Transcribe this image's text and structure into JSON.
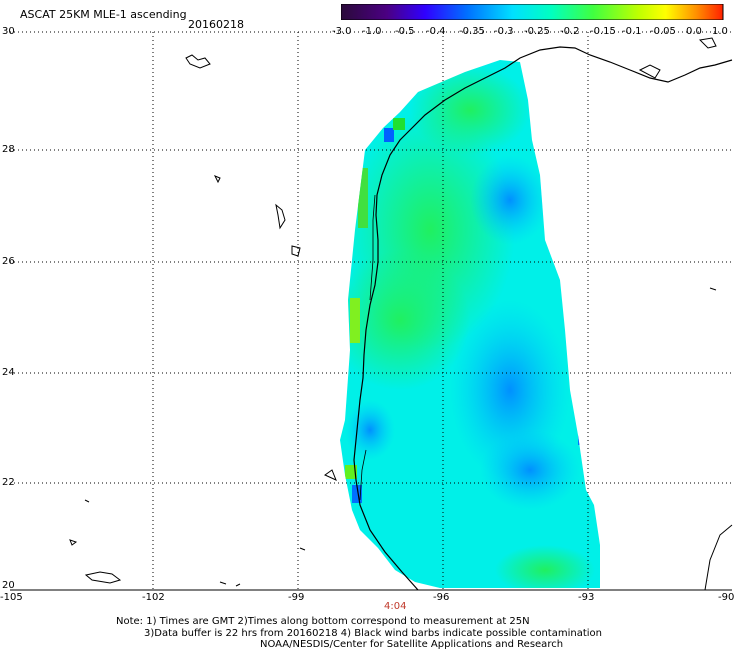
{
  "header": {
    "title": "ASCAT 25KM MLE-1 ascending",
    "date": "20160218"
  },
  "colorbar": {
    "labels": [
      "-3.0",
      "-1.0",
      "-0.5",
      "-0.4",
      "-0.35",
      "-0.3",
      "-0.25",
      "-0.2",
      "-0.15",
      "-0.1",
      "-0.05",
      "0.0",
      "1.0"
    ],
    "colors": [
      "#2a0a3a",
      "#4b0082",
      "#3a00c8",
      "#0033ff",
      "#0080ff",
      "#00c0ff",
      "#00ffe0",
      "#00ff80",
      "#40ff20",
      "#a0ff00",
      "#ffff00",
      "#ff8000",
      "#ff2000"
    ]
  },
  "axes": {
    "lat_labels": [
      "30",
      "28",
      "26",
      "24",
      "22",
      "20"
    ],
    "lon_labels": [
      "-105",
      "-102",
      "-99",
      "-96",
      "-93",
      "-90"
    ]
  },
  "pass_time": "4:04",
  "notes": {
    "line1": "Note: 1) Times are GMT 2)Times along bottom correspond to measurement at 25N",
    "line2": "3)Data buffer is 22 hrs from 20160218 4) Black wind barbs indicate possible contamination",
    "line3": "NOAA/NESDIS/Center for Satellite Applications and Research"
  },
  "colors": {
    "water_cyan": "#00ffe8",
    "water_green": "#20f070",
    "water_blue": "#00a8ff",
    "deep_blue": "#0060ff",
    "lime": "#90f020"
  }
}
